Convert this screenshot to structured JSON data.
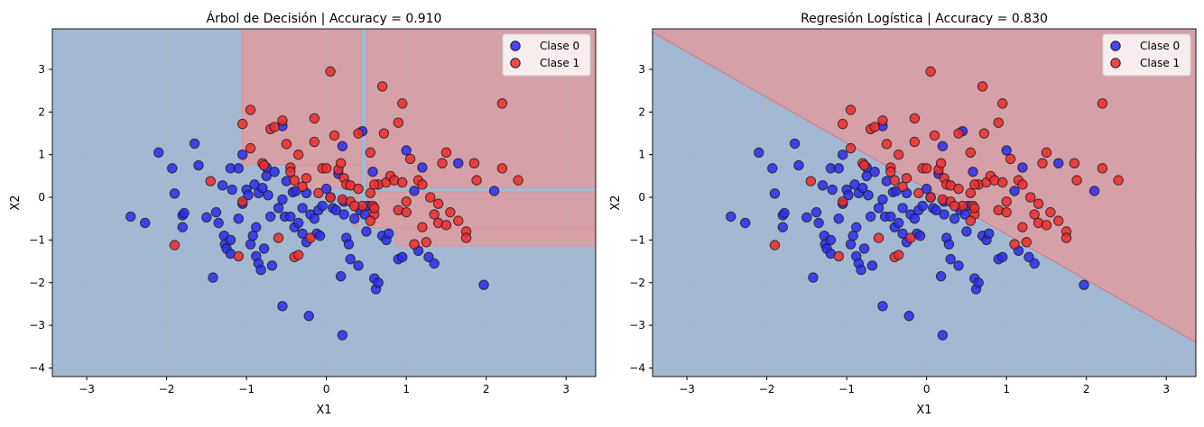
{
  "chart_data": [
    {
      "type": "scatter",
      "title": "Árbol de Decisión | Accuracy = 0.910",
      "xlabel": "X1",
      "ylabel": "X2",
      "xlim": [
        -3.43,
        3.37
      ],
      "ylim": [
        -4.2,
        3.95
      ],
      "xticks": [
        -3,
        -2,
        -1,
        0,
        1,
        2,
        3
      ],
      "yticks": [
        -4,
        -3,
        -2,
        -1,
        0,
        1,
        2,
        3
      ],
      "grid": true,
      "legend_position": "top-right",
      "decision_regions": {
        "background_class": "Clase 0",
        "class1_rectangles": [
          {
            "x": [
              -1.056,
              0.435
            ],
            "y": [
              0.761,
              3.95
            ]
          },
          {
            "x": [
              -0.446,
              0.435
            ],
            "y": [
              0.211,
              0.761
            ]
          },
          {
            "x": [
              0.333,
              0.401
            ],
            "y": [
              -0.698,
              0.211
            ]
          },
          {
            "x": [
              0.503,
              3.37
            ],
            "y": [
              0.233,
              3.95
            ]
          },
          {
            "x": [
              0.514,
              3.37
            ],
            "y": [
              -0.719,
              0.127
            ]
          },
          {
            "x": [
              0.864,
              3.37
            ],
            "y": [
              -1.142,
              -0.719
            ]
          }
        ]
      }
    },
    {
      "type": "scatter",
      "title": "Regresión Logística | Accuracy = 0.830",
      "xlabel": "X1",
      "ylabel": "X2",
      "xlim": [
        -3.43,
        3.37
      ],
      "ylim": [
        -4.2,
        3.95
      ],
      "xticks": [
        -3,
        -2,
        -1,
        0,
        1,
        2,
        3
      ],
      "yticks": [
        -4,
        -3,
        -2,
        -1,
        0,
        1,
        2,
        3
      ],
      "grid": true,
      "legend_position": "top-right",
      "decision_boundary": [
        [
          -3.43,
          3.87
        ],
        [
          3.37,
          -3.4
        ]
      ]
    }
  ],
  "series": [
    {
      "name": "Clase 0",
      "color": "#2b2bf0",
      "points": [
        [
          -2.45,
          -0.45
        ],
        [
          -2.27,
          -0.6
        ],
        [
          -2.1,
          1.05
        ],
        [
          -1.93,
          0.68
        ],
        [
          -1.9,
          0.09
        ],
        [
          -1.8,
          -0.42
        ],
        [
          -1.78,
          -0.37
        ],
        [
          -1.8,
          -0.7
        ],
        [
          -1.65,
          1.26
        ],
        [
          -1.6,
          0.75
        ],
        [
          -1.5,
          -0.47
        ],
        [
          -1.42,
          -1.88
        ],
        [
          -1.38,
          -0.35
        ],
        [
          -1.35,
          -0.6
        ],
        [
          -1.3,
          0.28
        ],
        [
          -1.28,
          -0.9
        ],
        [
          -1.27,
          -1.1
        ],
        [
          -1.25,
          -1.2
        ],
        [
          -1.2,
          -1.0
        ],
        [
          -1.2,
          -1.32
        ],
        [
          -1.2,
          0.68
        ],
        [
          -1.18,
          0.18
        ],
        [
          -1.1,
          -0.5
        ],
        [
          -1.1,
          0.68
        ],
        [
          -1.05,
          1.0
        ],
        [
          -1.05,
          -0.15
        ],
        [
          -1.0,
          0.18
        ],
        [
          -0.98,
          0.05
        ],
        [
          -0.95,
          -1.1
        ],
        [
          -0.92,
          -0.9
        ],
        [
          -0.9,
          0.3
        ],
        [
          -0.88,
          -0.7
        ],
        [
          -0.88,
          -1.38
        ],
        [
          -0.85,
          -1.55
        ],
        [
          -0.85,
          0.1
        ],
        [
          -0.82,
          -1.7
        ],
        [
          -0.8,
          0.22
        ],
        [
          -0.78,
          -1.2
        ],
        [
          -0.75,
          0.5
        ],
        [
          -0.75,
          0.7
        ],
        [
          -0.73,
          0.05
        ],
        [
          -0.7,
          -0.45
        ],
        [
          -0.68,
          -1.6
        ],
        [
          -0.65,
          0.6
        ],
        [
          -0.6,
          -0.25
        ],
        [
          -0.55,
          -0.05
        ],
        [
          -0.55,
          -2.55
        ],
        [
          -0.55,
          1.67
        ],
        [
          -0.52,
          -0.45
        ],
        [
          -0.5,
          0.38
        ],
        [
          -0.45,
          -0.45
        ],
        [
          -0.42,
          0.12
        ],
        [
          -0.4,
          -0.7
        ],
        [
          -0.38,
          0.15
        ],
        [
          -0.35,
          -0.6
        ],
        [
          -0.3,
          -0.25
        ],
        [
          -0.3,
          -0.85
        ],
        [
          -0.25,
          0.1
        ],
        [
          -0.25,
          -1.05
        ],
        [
          -0.22,
          -2.78
        ],
        [
          -0.2,
          -0.4
        ],
        [
          -0.15,
          -0.5
        ],
        [
          -0.12,
          -0.85
        ],
        [
          -0.1,
          -0.3
        ],
        [
          -0.08,
          -0.9
        ],
        [
          -0.05,
          -0.2
        ],
        [
          0.0,
          0.2
        ],
        [
          0.05,
          0.0
        ],
        [
          0.08,
          -0.25
        ],
        [
          0.12,
          -0.3
        ],
        [
          0.15,
          0.55
        ],
        [
          0.18,
          -1.85
        ],
        [
          0.2,
          1.2
        ],
        [
          0.2,
          -3.23
        ],
        [
          0.22,
          -0.4
        ],
        [
          0.22,
          -0.1
        ],
        [
          0.25,
          -0.95
        ],
        [
          0.28,
          -1.1
        ],
        [
          0.3,
          -1.45
        ],
        [
          0.35,
          -0.5
        ],
        [
          0.4,
          -1.6
        ],
        [
          0.42,
          -0.3
        ],
        [
          0.45,
          1.55
        ],
        [
          0.48,
          -0.4
        ],
        [
          0.5,
          -0.8
        ],
        [
          0.52,
          -0.2
        ],
        [
          0.58,
          0.6
        ],
        [
          0.6,
          -1.9
        ],
        [
          0.62,
          -2.15
        ],
        [
          0.65,
          -2.0
        ],
        [
          0.7,
          -0.9
        ],
        [
          0.75,
          -1.0
        ],
        [
          0.78,
          -0.85
        ],
        [
          0.9,
          -1.45
        ],
        [
          0.95,
          -1.4
        ],
        [
          1.0,
          1.1
        ],
        [
          1.1,
          0.15
        ],
        [
          1.15,
          -1.25
        ],
        [
          1.2,
          0.7
        ],
        [
          1.28,
          -1.4
        ],
        [
          1.35,
          -1.55
        ],
        [
          1.65,
          0.8
        ],
        [
          1.97,
          -2.05
        ],
        [
          2.1,
          0.15
        ]
      ]
    },
    {
      "name": "Clase 1",
      "color": "#f02b2b",
      "points": [
        [
          -1.9,
          -1.12
        ],
        [
          -1.45,
          0.38
        ],
        [
          -1.1,
          -1.38
        ],
        [
          -1.05,
          1.72
        ],
        [
          -1.05,
          -0.1
        ],
        [
          -0.95,
          2.05
        ],
        [
          -0.95,
          1.15
        ],
        [
          -0.8,
          0.8
        ],
        [
          -0.78,
          0.75
        ],
        [
          -0.7,
          1.6
        ],
        [
          -0.65,
          1.65
        ],
        [
          -0.55,
          1.8
        ],
        [
          -0.5,
          1.25
        ],
        [
          -0.45,
          0.7
        ],
        [
          -0.45,
          0.6
        ],
        [
          -0.4,
          0.4
        ],
        [
          -0.35,
          1.0
        ],
        [
          -0.4,
          -1.4
        ],
        [
          -0.35,
          -1.35
        ],
        [
          -0.3,
          0.25
        ],
        [
          -0.25,
          0.45
        ],
        [
          -0.15,
          1.3
        ],
        [
          -0.15,
          1.85
        ],
        [
          -0.1,
          0.1
        ],
        [
          -0.05,
          0.68
        ],
        [
          0.0,
          0.68
        ],
        [
          0.05,
          0.0
        ],
        [
          0.05,
          2.95
        ],
        [
          0.1,
          1.45
        ],
        [
          0.15,
          0.65
        ],
        [
          0.18,
          0.8
        ],
        [
          0.2,
          -0.05
        ],
        [
          0.22,
          0.45
        ],
        [
          0.25,
          0.3
        ],
        [
          0.3,
          0.28
        ],
        [
          0.3,
          -0.1
        ],
        [
          0.4,
          1.5
        ],
        [
          0.4,
          0.2
        ],
        [
          0.45,
          -0.2
        ],
        [
          0.55,
          0.1
        ],
        [
          0.55,
          1.05
        ],
        [
          0.58,
          -0.2
        ],
        [
          0.6,
          -0.4
        ],
        [
          0.65,
          0.3
        ],
        [
          0.7,
          2.6
        ],
        [
          0.72,
          1.5
        ],
        [
          0.75,
          0.35
        ],
        [
          0.8,
          0.5
        ],
        [
          0.85,
          0.4
        ],
        [
          0.9,
          1.75
        ],
        [
          0.9,
          -0.3
        ],
        [
          0.95,
          2.2
        ],
        [
          0.95,
          0.35
        ],
        [
          1.0,
          -0.1
        ],
        [
          1.05,
          0.9
        ],
        [
          1.1,
          -1.1
        ],
        [
          1.15,
          0.4
        ],
        [
          1.2,
          -0.7
        ],
        [
          1.2,
          0.3
        ],
        [
          1.25,
          -1.05
        ],
        [
          1.3,
          0.0
        ],
        [
          1.4,
          -0.15
        ],
        [
          1.4,
          -0.6
        ],
        [
          1.45,
          0.8
        ],
        [
          1.5,
          1.05
        ],
        [
          1.55,
          -0.35
        ],
        [
          1.5,
          -0.65
        ],
        [
          1.65,
          -0.55
        ],
        [
          1.75,
          -0.8
        ],
        [
          1.75,
          -0.95
        ],
        [
          1.85,
          0.8
        ],
        [
          1.88,
          0.4
        ],
        [
          2.2,
          2.2
        ],
        [
          2.2,
          0.68
        ],
        [
          2.4,
          0.4
        ],
        [
          0.6,
          0.3
        ],
        [
          -0.2,
          -0.95
        ],
        [
          0.55,
          -0.55
        ],
        [
          1.0,
          -0.35
        ],
        [
          1.35,
          -0.4
        ],
        [
          0.35,
          -0.2
        ],
        [
          -0.6,
          -0.95
        ],
        [
          0.6,
          -0.25
        ]
      ]
    }
  ],
  "colors": {
    "region_class0": "#a3b9d3",
    "region_class1": "#d6a0a9",
    "grid": "#b0b0b0"
  }
}
